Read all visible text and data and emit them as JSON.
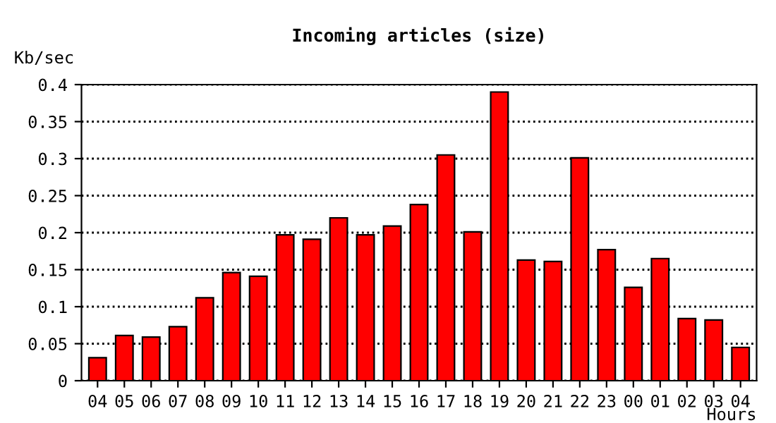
{
  "chart_data": {
    "type": "bar",
    "title": "Incoming articles (size)",
    "xlabel": "Hours",
    "ylabel": "Kb/sec",
    "categories": [
      "04",
      "05",
      "06",
      "07",
      "08",
      "09",
      "10",
      "11",
      "12",
      "13",
      "14",
      "15",
      "16",
      "17",
      "18",
      "19",
      "20",
      "21",
      "22",
      "23",
      "00",
      "01",
      "02",
      "03",
      "04"
    ],
    "values": [
      0.031,
      0.061,
      0.059,
      0.073,
      0.112,
      0.146,
      0.141,
      0.197,
      0.191,
      0.22,
      0.197,
      0.209,
      0.238,
      0.305,
      0.201,
      0.39,
      0.163,
      0.161,
      0.301,
      0.177,
      0.126,
      0.165,
      0.084,
      0.082,
      0.045
    ],
    "color": "#ff0000",
    "ylim": [
      0,
      0.4
    ],
    "yticks": [
      0,
      0.05,
      0.1,
      0.15,
      0.2,
      0.25,
      0.3,
      0.35,
      0.4
    ],
    "grid": "y",
    "line_style": "dotted"
  }
}
